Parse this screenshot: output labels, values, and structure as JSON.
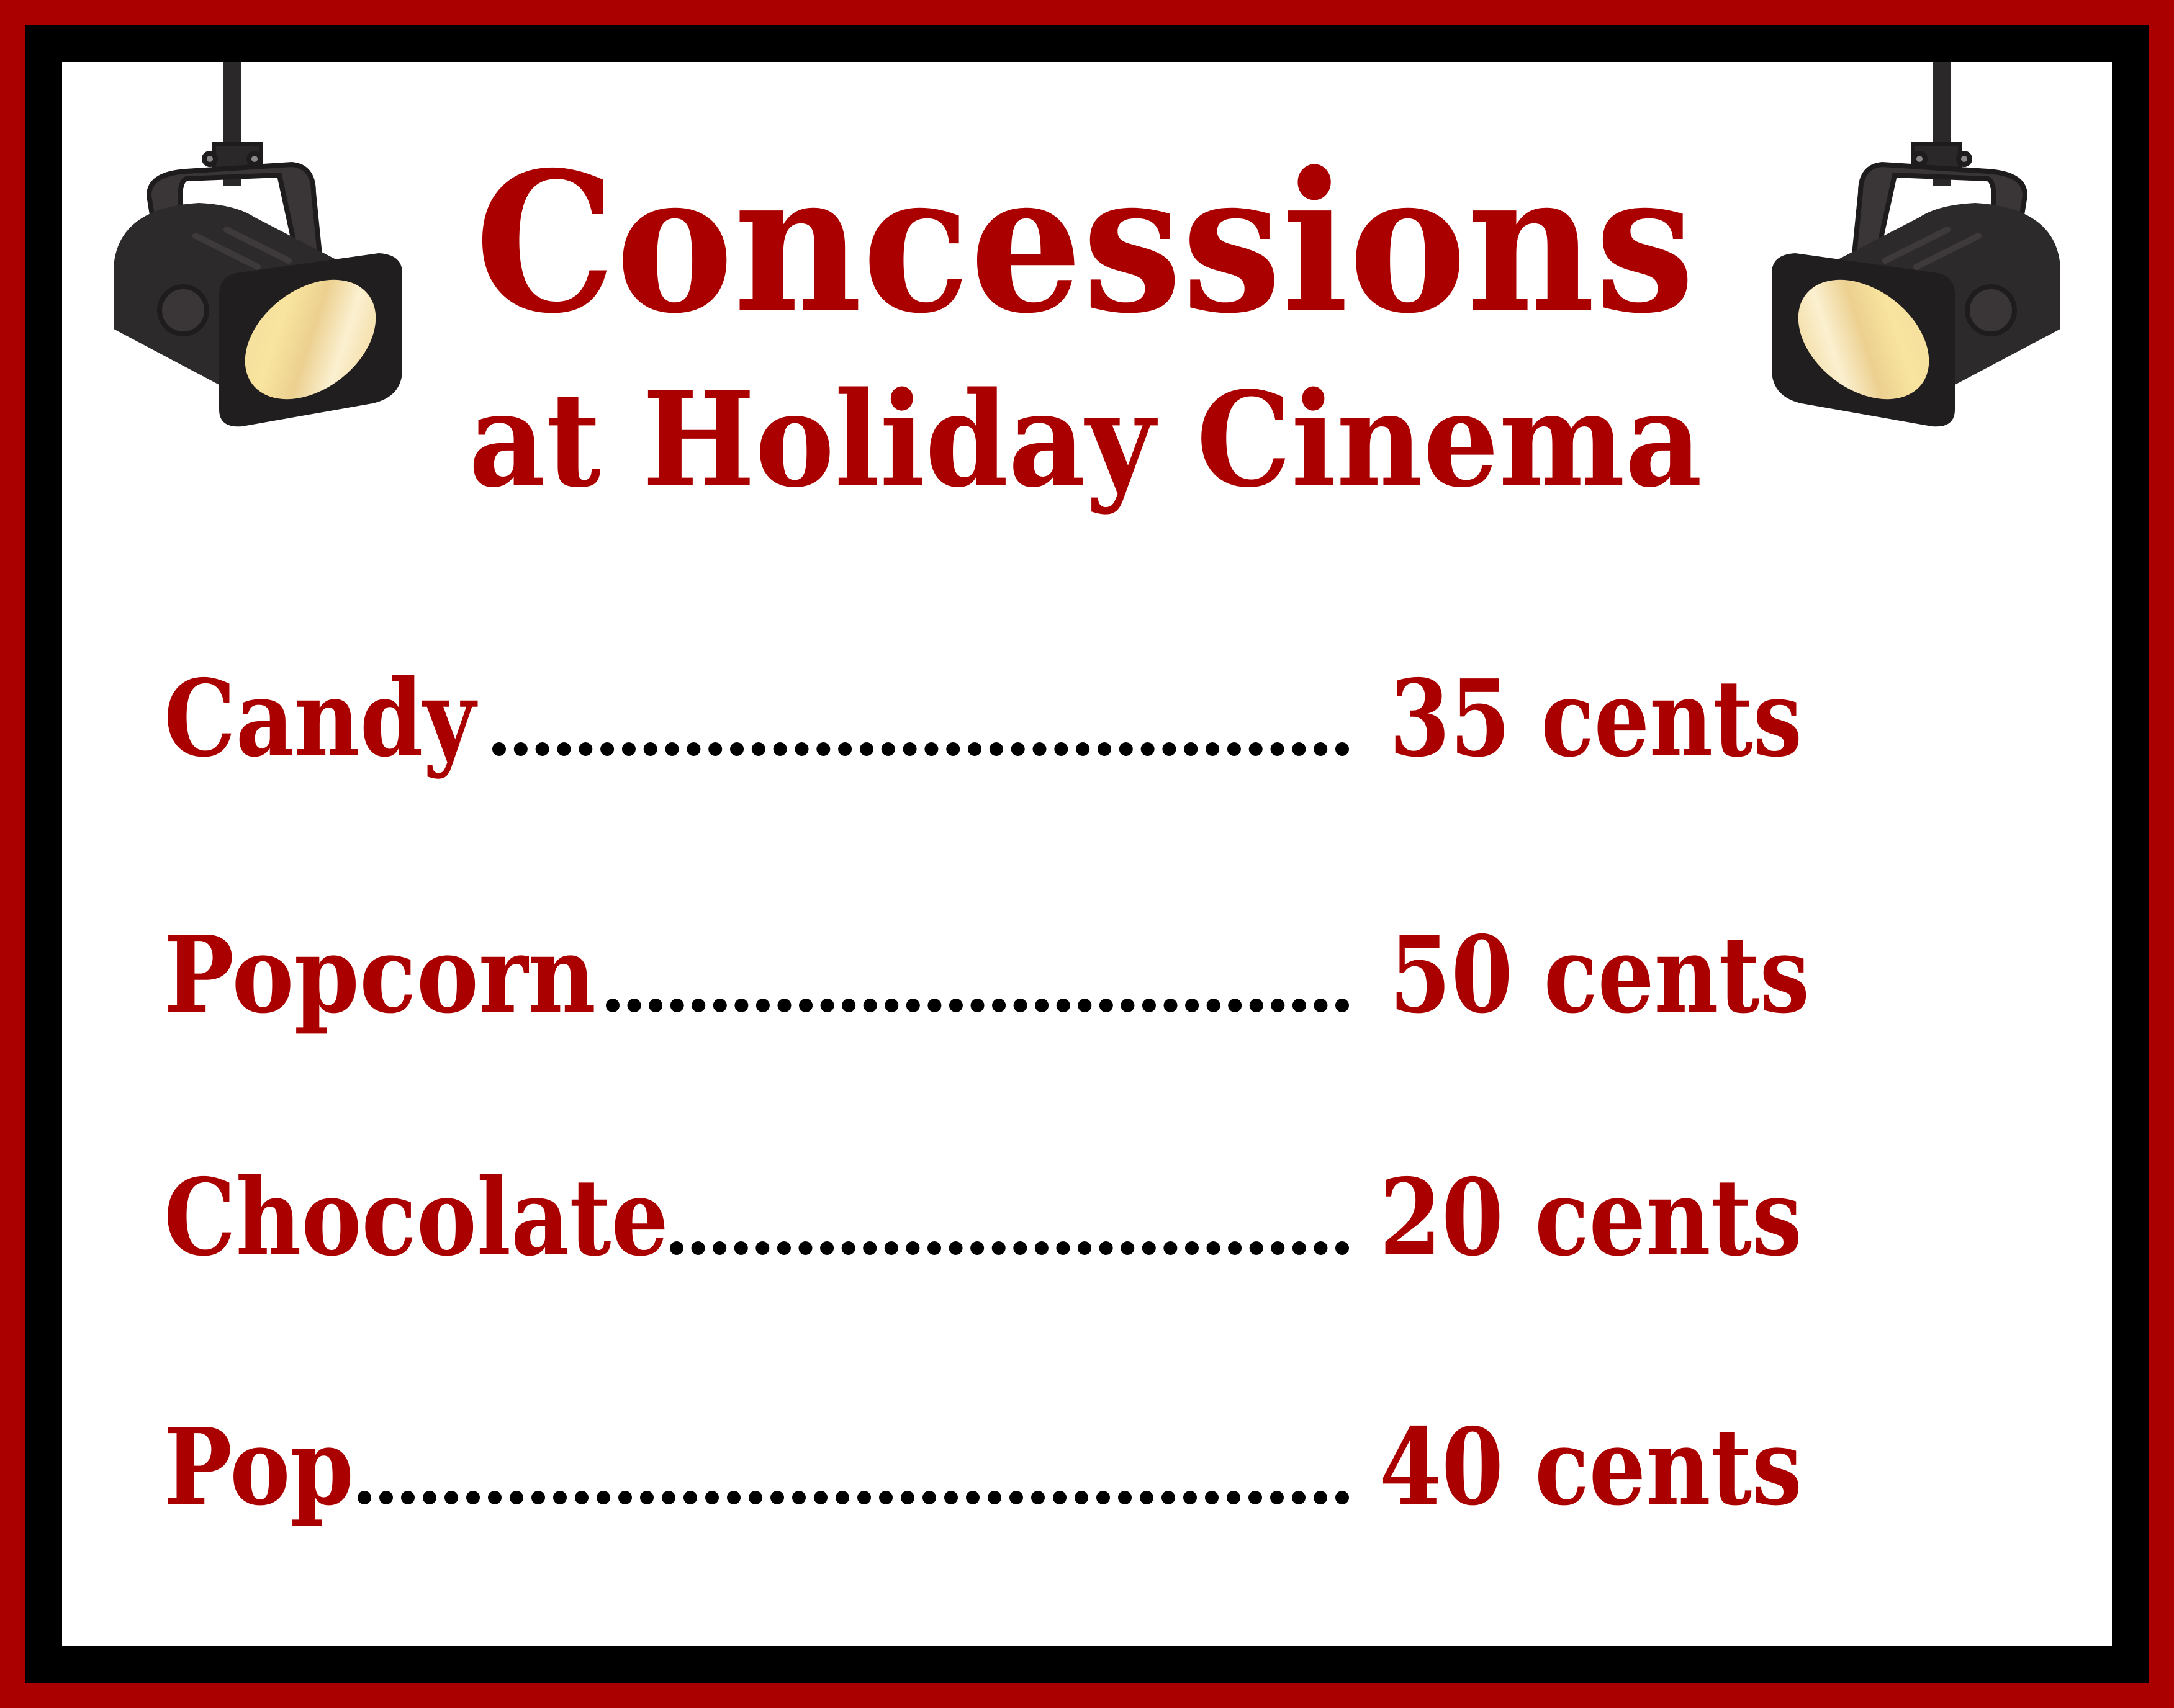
{
  "title": "Concessions",
  "subtitle": "at Holiday Cinema",
  "colors": {
    "accent": "#AA0000",
    "border_outer": "#AA0000",
    "border_inner": "#000000",
    "background": "#FFFFFF"
  },
  "decorations": [
    "spotlight-icon-left",
    "spotlight-icon-right"
  ],
  "menu": [
    {
      "item": "Candy",
      "price": "35 cents"
    },
    {
      "item": "Popcorn",
      "price": "50 cents"
    },
    {
      "item": "Chocolate",
      "price": "20 cents"
    },
    {
      "item": "Pop",
      "price": "40 cents"
    }
  ]
}
